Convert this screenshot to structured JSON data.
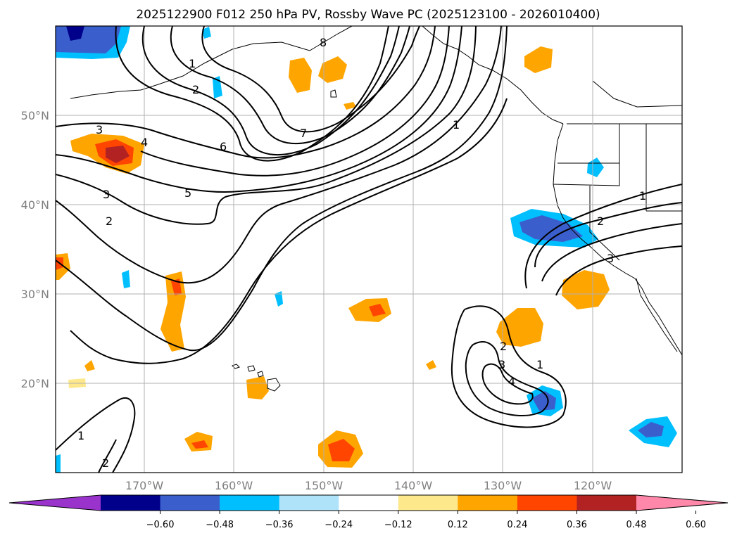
{
  "title": "2025122900 F012 250 hPa PV, Rossby Wave PC (2025123100 - 2026010400)",
  "map": {
    "lon_range": [
      -180,
      -110
    ],
    "lat_range": [
      10,
      60
    ],
    "lon_ticks": [
      "170°W",
      "160°W",
      "150°W",
      "140°W",
      "130°W",
      "120°W"
    ],
    "lat_ticks": [
      "50°N",
      "40°N",
      "30°N",
      "20°N"
    ],
    "grid": true,
    "projection": "PlateCarree"
  },
  "contours": {
    "field": "250 hPa PV",
    "color": "#000000",
    "labels": [
      "1",
      "2",
      "8",
      "3",
      "4",
      "7",
      "6",
      "5",
      "3",
      "2",
      "1",
      "1",
      "2",
      "3",
      "2",
      "3",
      "1",
      "4",
      "1",
      "2"
    ]
  },
  "colorbar": {
    "ticks": [
      "−0.60",
      "−0.48",
      "−0.36",
      "−0.24",
      "−0.12",
      "0.12",
      "0.24",
      "0.36",
      "0.48",
      "0.60"
    ],
    "extend": "both",
    "colors": [
      "#9933cc",
      "#00008b",
      "#3a5fcd",
      "#00bfff",
      "#aee3fa",
      "#ffffff",
      "#fde88c",
      "#ffa500",
      "#ff4500",
      "#b22222",
      "#ff88aa"
    ]
  }
}
